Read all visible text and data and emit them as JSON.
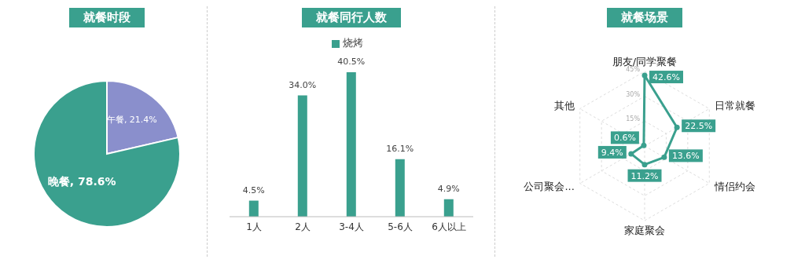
{
  "chart_data": [
    {
      "type": "pie",
      "title": "就餐时段",
      "categories": [
        "午餐",
        "晚餐"
      ],
      "values": [
        21.4,
        78.6
      ],
      "colors": [
        "#8a8fcc",
        "#3aa08e"
      ],
      "value_labels": [
        "21.4%",
        "78.6%"
      ],
      "legend": false
    },
    {
      "type": "bar",
      "title": "就餐同行人数",
      "categories": [
        "1人",
        "2人",
        "3-4人",
        "5-6人",
        "6人以上"
      ],
      "series": [
        {
          "name": "烧烤",
          "color": "#3aa08e",
          "values": [
            4.5,
            34.0,
            40.5,
            16.1,
            4.9
          ],
          "value_labels": [
            "4.5%",
            "34.0%",
            "40.5%",
            "16.1%",
            "4.9%"
          ]
        }
      ],
      "legend": "top",
      "tick_labels": "x"
    },
    {
      "type": "radar",
      "title": "就餐场景",
      "categories": [
        "朋友/同学聚餐",
        "日常就餐",
        "情侣约会",
        "家庭聚会",
        "公司聚会...",
        "其他"
      ],
      "series": [
        {
          "color": "#3aa08e",
          "values": [
            42.6,
            22.5,
            13.6,
            11.2,
            9.4,
            0.6
          ],
          "value_labels": [
            "42.6%",
            "22.5%",
            "13.6%",
            "11.2%",
            "9.4%",
            "0.6%"
          ]
        }
      ],
      "ylim": [
        0,
        45
      ],
      "yticks": [
        {
          "value": 15,
          "label": "15%"
        },
        {
          "value": 30,
          "label": "30%"
        },
        {
          "value": 45,
          "label": "45%"
        }
      ],
      "grid": true,
      "marker": "circle"
    }
  ]
}
